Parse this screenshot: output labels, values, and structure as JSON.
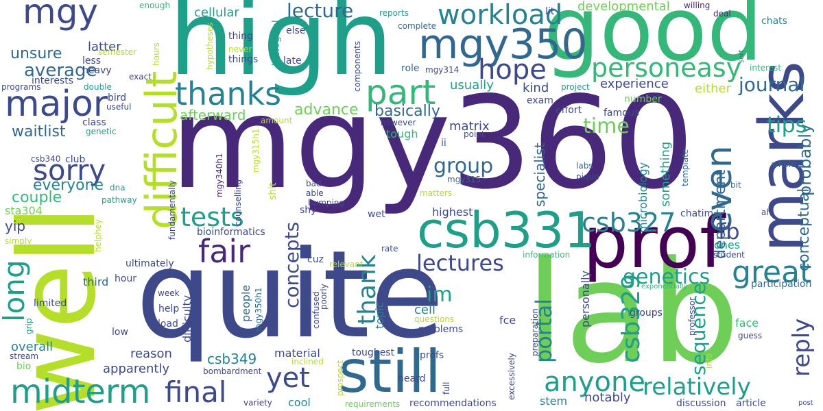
{
  "colors": {
    "background": "#ffffff",
    "yellow": "#fde725",
    "lime": "#b5de2b",
    "green": "#6ece58",
    "teal_green": "#35b779",
    "teal": "#1f9e89",
    "blue_teal": "#26828e",
    "blue": "#31688e",
    "indigo": "#3e4989",
    "purple": "#482878",
    "dark_purple": "#440154"
  },
  "words": {
    "mgy360": "mgy360",
    "quite": "quite",
    "lab": "lab",
    "well": "well",
    "high": "high",
    "good": "good",
    "marks": "marks",
    "prof": "prof",
    "still": "still",
    "csb331": "csb331",
    "difficult": "difficult",
    "mgy350": "mgy350",
    "mgy": "mgy",
    "major": "major",
    "midterm": "midterm",
    "final": "final",
    "fair": "fair",
    "thanks": "thanks",
    "part": "part",
    "workload": "workload",
    "hope": "hope",
    "personeasy": "personeasy",
    "sorry": "sorry",
    "long": "long",
    "yet": "yet",
    "tests": "tests",
    "lectures": "lectures",
    "lecture": "lecture",
    "csb327": "csb327",
    "anyone": "anyone",
    "relatively": "relatively",
    "great": "great",
    "even": "even",
    "journal": "journal",
    "reply": "reply",
    "probably": "probably",
    "conceptual": "conceptual",
    "tips": "tips",
    "time": "time",
    "genetics": "genetics",
    "csb329": "csb329",
    "sequence": "sequence",
    "department": "department",
    "group": "group",
    "im": "im",
    "concepts": "concepts",
    "thank": "thank",
    "portal": "portal",
    "fb": "fb",
    "average": "average",
    "unsure": "unsure",
    "waitlist": "waitlist",
    "everyone": "everyone",
    "couple": "couple",
    "yip": "yip",
    "sta304": "sta304",
    "latter": "latter",
    "less": "less",
    "heavy": "heavy",
    "semester": "semester",
    "enough": "enough",
    "reports": "reports",
    "lit": "lit",
    "willing": "willing",
    "deal": "deal",
    "developmental": "developmental",
    "cellular": "cellular",
    "thing": "thing",
    "things": "things",
    "never": "never",
    "else": "else",
    "late": "late",
    "hypotheses": "hypotheses",
    "biological": "biological",
    "components": "components",
    "complete": "complete",
    "role": "role",
    "mgy314": "mgy314",
    "chats": "chats",
    "interest": "interest",
    "sort": "sort",
    "kind": "kind",
    "experience": "experience",
    "either": "either",
    "project": "project",
    "usually": "usually",
    "exam": "exam",
    "effort": "effort",
    "famous": "famous",
    "number": "number",
    "basically": "basically",
    "advance": "advance",
    "afterward": "afterward",
    "amount": "amount",
    "however": "however",
    "tough": "tough",
    "matrix": "matrix",
    "specialist": "specialist",
    "something": "something",
    "microbiology": "microbiology",
    "template": "template",
    "ii": "ii",
    "point": "point",
    "mgy315h1": "mgy315h1",
    "mgy340h1": "mgy340h1",
    "shit": "shit",
    "counselling": "counselling",
    "bad": "bad",
    "able": "able",
    "bumping": "bumping",
    "mgy315": "mgy315",
    "labs": "labs",
    "pique": "pique",
    "bit": "bit",
    "whole": "whole",
    "ah": "ah",
    "chatim": "chatim",
    "interests": "interests",
    "programs": "programs",
    "double": "double",
    "exact": "exact",
    "hours": "hours",
    "bird": "bird",
    "useful": "useful",
    "class": "class",
    "genetic": "genetic",
    "csb340": "csb340",
    "club": "club",
    "dna": "dna",
    "pathway": "pathway",
    "fundamentally": "fundamentally",
    "helphey": "helphey",
    "simply": "simply",
    "bioinformatics": "bioinformatics",
    "ultimately": "ultimately",
    "third": "third",
    "hour": "hour",
    "shy": "shy",
    "wet": "wet",
    "matters": "matters",
    "highest": "highest",
    "people": "people",
    "cuz": "cuz",
    "relevant": "relevant",
    "rate": "rate",
    "information": "information",
    "student": "student",
    "ones": "ones",
    "participation": "participation",
    "exponentially": "exponentially",
    "difficulty": "difficulty",
    "help": "help",
    "week": "week",
    "load": "load",
    "limited": "limited",
    "grip": "grip",
    "low": "low",
    "overall": "overall",
    "stream": "stream",
    "bio": "bio",
    "reason": "reason",
    "apparently": "apparently",
    "csb349": "csb349",
    "mgy350h1": "mgy350h1",
    "mgy311y1": "mgy311y1",
    "poorly": "poorly",
    "confused": "confused",
    "topic": "topic",
    "cell": "cell",
    "questions": "questions",
    "problems": "problems",
    "material": "material",
    "toughest": "toughest",
    "inclined": "inclined",
    "profs": "profs",
    "heard": "heard",
    "prospect": "prospect",
    "full": "full",
    "bombardment": "bombardment",
    "cool": "cool",
    "variety": "variety",
    "requirements": "requirements",
    "recommendations": "recommendations",
    "fce": "fce",
    "preparation": "preparation",
    "excessively": "excessively",
    "stem": "stem",
    "notably": "notably",
    "personally": "personally",
    "groups": "groups",
    "professor": "professor",
    "info": "info",
    "face": "face",
    "guess": "guess",
    "discussion": "discussion",
    "article": "article",
    "post": "post"
  }
}
